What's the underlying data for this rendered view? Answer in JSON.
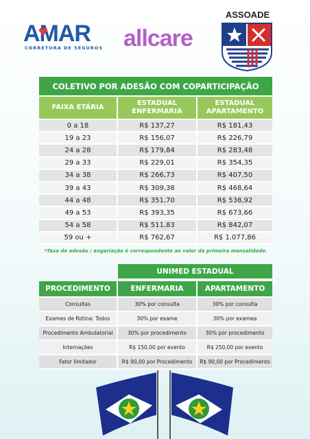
{
  "logos": {
    "amar": "AMAR",
    "amar_sub": "CORRETORA DE SEGUROS",
    "allcare": "allcare",
    "assoade": "ASSOADE"
  },
  "table": {
    "title": "COLETIVO POR ADESÃO COM COPARTICIPAÇÃO",
    "headers": [
      "FAIXA ETÁRIA",
      "ESTADUAL\nENFERMARIA",
      "ESTADUAL\nAPARTAMENTO"
    ],
    "rows": [
      [
        "0 a 18",
        "R$ 137,27",
        "R$ 181,43"
      ],
      [
        "19 a 23",
        "R$ 156,07",
        "R$ 226,79"
      ],
      [
        "24 a 28",
        "R$ 179,84",
        "R$ 283,48"
      ],
      [
        "29 a 33",
        "R$ 229,01",
        "R$ 354,35"
      ],
      [
        "34 a 38",
        "R$ 266,73",
        "R$ 407,50"
      ],
      [
        "39 a 43",
        "R$ 309,38",
        "R$ 468,64"
      ],
      [
        "44 a 48",
        "R$ 351,70",
        "R$ 538,92"
      ],
      [
        "49 a 53",
        "R$ 393,35",
        "R$ 673,66"
      ],
      [
        "54 a 58",
        "R$ 511,83",
        "R$ 842,07"
      ],
      [
        "59 ou +",
        "R$ 762,67",
        "R$ 1.077,86"
      ]
    ]
  },
  "note": "*Taxa de adesão / angariação é correspondente ao valor da primeira mensalidade.",
  "unimed": {
    "title": "UNIMED ESTADUAL",
    "headers": [
      "PROCEDIMENTO",
      "ENFERMARIA",
      "APARTAMENTO"
    ],
    "rows": [
      [
        "Consultas",
        "30% por consulta",
        "30% por consulta"
      ],
      [
        "Exames de Rotina: Todos",
        "30% por exame",
        "30% por examea"
      ],
      [
        "Procedimento Ambulatorial",
        "30% por procedimento",
        "30% por procedimento"
      ],
      [
        "Internações",
        "R$ 150,00 por evento",
        "R$ 250,00 por evento"
      ],
      [
        "Fator limitador",
        "R$ 90,00 por Procedimento",
        "R$ 90,00 por Procedimento"
      ]
    ]
  }
}
